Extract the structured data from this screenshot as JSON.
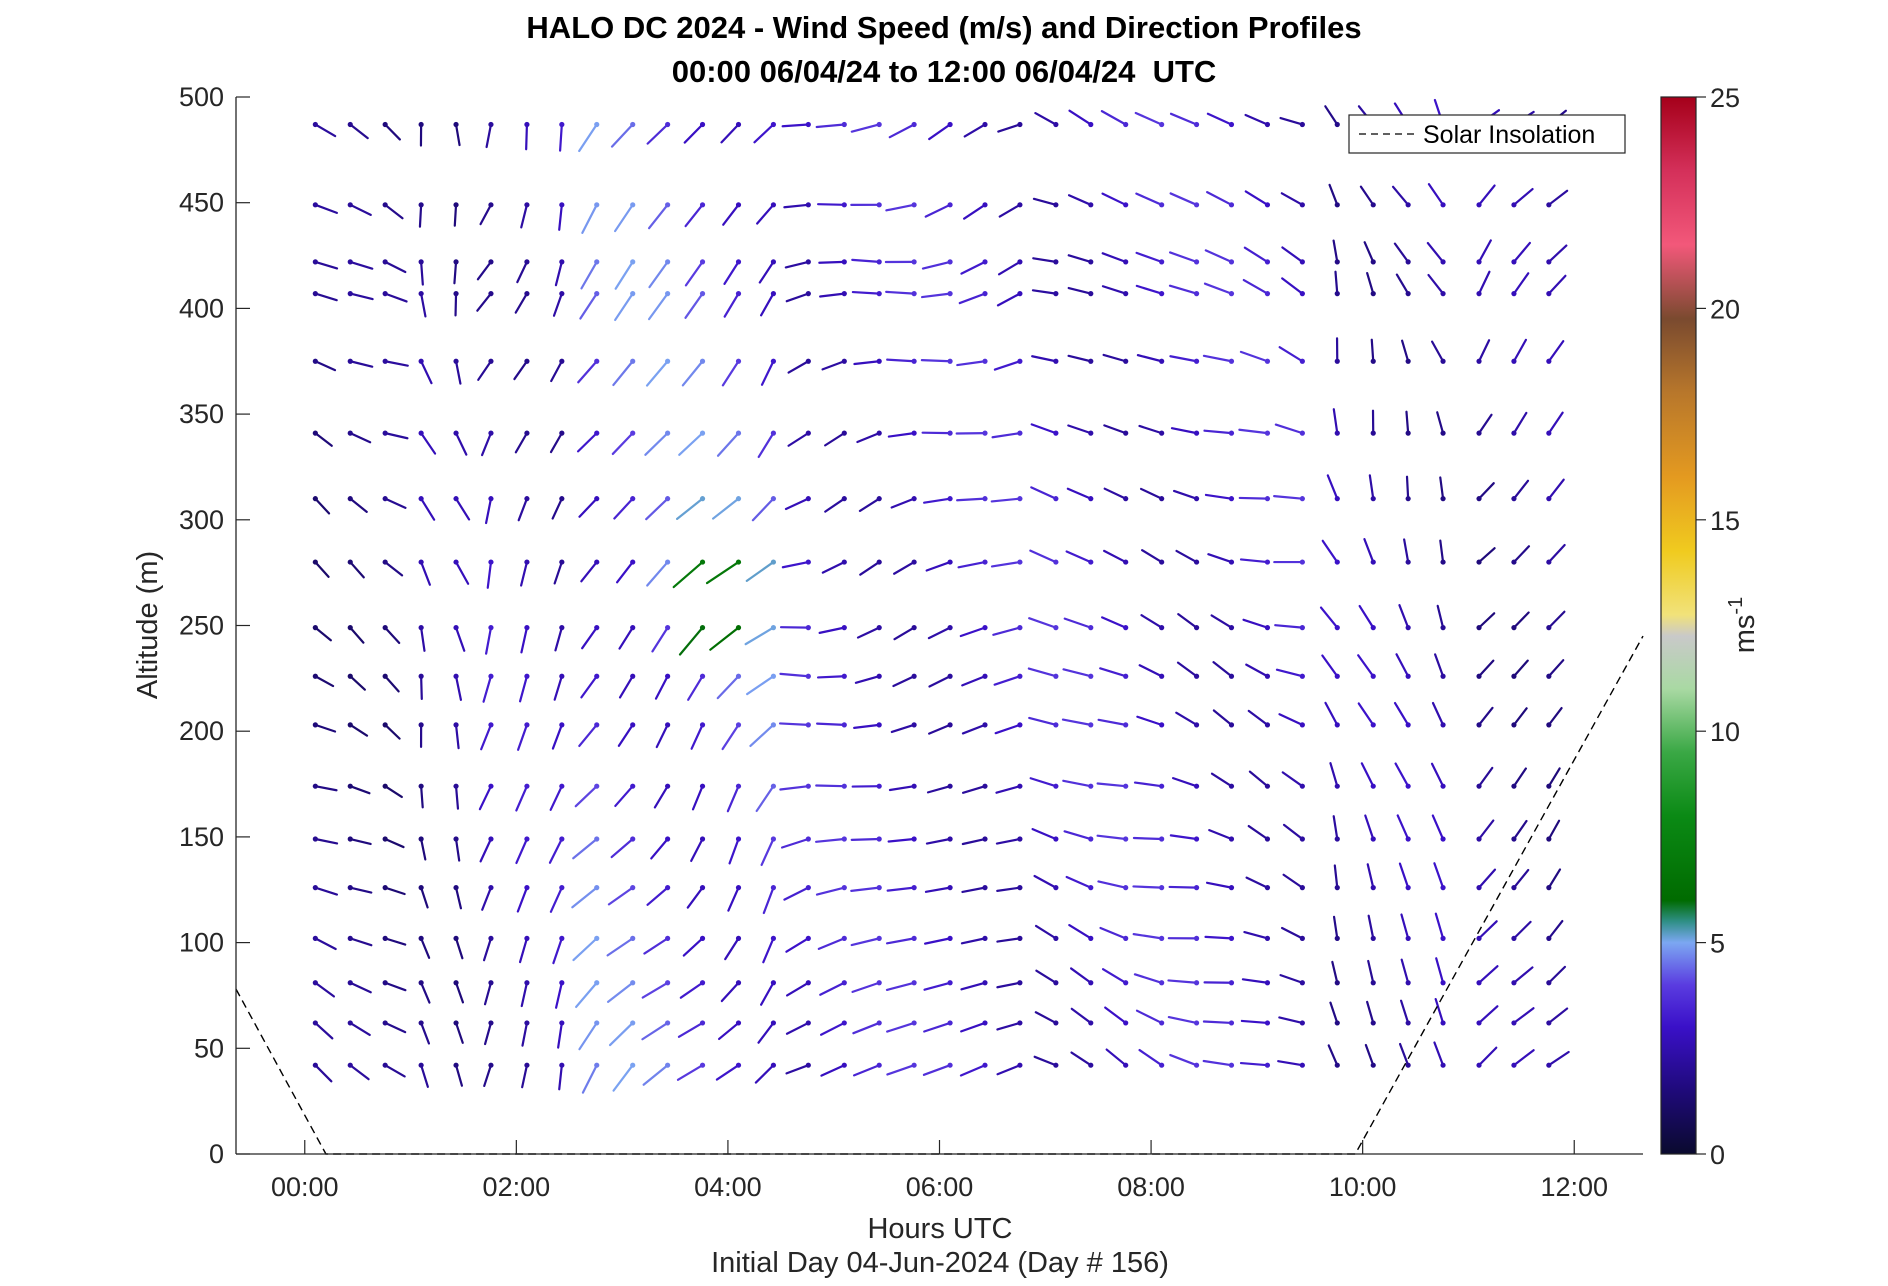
{
  "chart_data": {
    "type": "quiver",
    "title": "HALO DC 2024 - Wind Speed (m/s) and Direction Profiles",
    "subtitle": "00:00 06/04/24 to 12:00 06/04/24  UTC",
    "xlabel": "Hours UTC",
    "ylabel": "Altitude (m)",
    "footer": "Initial Day 04-Jun-2024 (Day # 156)",
    "colorbar_label": "ms",
    "colorbar_label_sup": "-1",
    "xlim": [
      -0.65,
      12.65
    ],
    "ylim": [
      0,
      500
    ],
    "x_ticks": [
      0,
      2,
      4,
      6,
      8,
      10,
      12
    ],
    "x_tick_labels": [
      "00:00",
      "02:00",
      "04:00",
      "06:00",
      "08:00",
      "10:00",
      "12:00"
    ],
    "y_ticks": [
      0,
      50,
      100,
      150,
      200,
      250,
      300,
      350,
      400,
      450,
      500
    ],
    "y_tick_labels": [
      "0",
      "50",
      "100",
      "150",
      "200",
      "250",
      "300",
      "350",
      "400",
      "450",
      "500"
    ],
    "colorbar_range": [
      0,
      25
    ],
    "colorbar_ticks": [
      0,
      5,
      10,
      15,
      20,
      25
    ],
    "legend": {
      "entries": [
        "Solar Insolation"
      ],
      "placement": "top-right"
    },
    "time_hours": [
      0.1,
      0.43,
      0.76,
      1.1,
      1.43,
      1.76,
      2.1,
      2.43,
      2.76,
      3.1,
      3.43,
      3.76,
      4.1,
      4.43,
      4.76,
      5.1,
      5.43,
      5.76,
      6.1,
      6.43,
      6.76,
      7.1,
      7.43,
      7.76,
      8.1,
      8.43,
      8.76,
      9.1,
      9.43,
      9.76,
      10.1,
      10.43,
      10.76,
      11.1,
      11.43,
      11.76
    ],
    "altitudes_m": [
      42,
      62,
      81,
      102,
      126,
      149,
      174,
      203,
      226,
      249,
      280,
      310,
      341,
      375,
      407,
      422,
      449,
      487
    ],
    "solar_insolation_line": {
      "name": "Solar Insolation",
      "x": [
        -0.65,
        0.2,
        9.93,
        12.65
      ],
      "y": [
        78,
        0,
        0,
        245
      ]
    },
    "wind_regimes": [
      {
        "hours": [
          0.0,
          0.8
        ],
        "direction_deg": 300,
        "speed_ms": 2.0
      },
      {
        "hours": [
          0.8,
          1.5
        ],
        "direction_deg": 345,
        "speed_ms": 2.5
      },
      {
        "hours": [
          1.5,
          2.6
        ],
        "direction_deg": 20,
        "speed_ms": 3.0
      },
      {
        "hours": [
          2.6,
          4.5
        ],
        "direction_deg": 40,
        "speed_ms": 4.5
      },
      {
        "hours": [
          4.5,
          6.9
        ],
        "direction_deg": 75,
        "speed_ms": 3.5
      },
      {
        "hours": [
          6.9,
          9.6
        ],
        "direction_deg": 110,
        "speed_ms": 3.5
      },
      {
        "hours": [
          9.6,
          10.9
        ],
        "direction_deg": 160,
        "speed_ms": 2.8
      },
      {
        "hours": [
          10.9,
          12.0
        ],
        "direction_deg": 220,
        "speed_ms": 2.5
      }
    ],
    "peak_speed_ms": 8.0,
    "peak_region": {
      "hours": [
        3.2,
        4.6
      ],
      "altitudes_m": [
        220,
        320
      ]
    }
  }
}
